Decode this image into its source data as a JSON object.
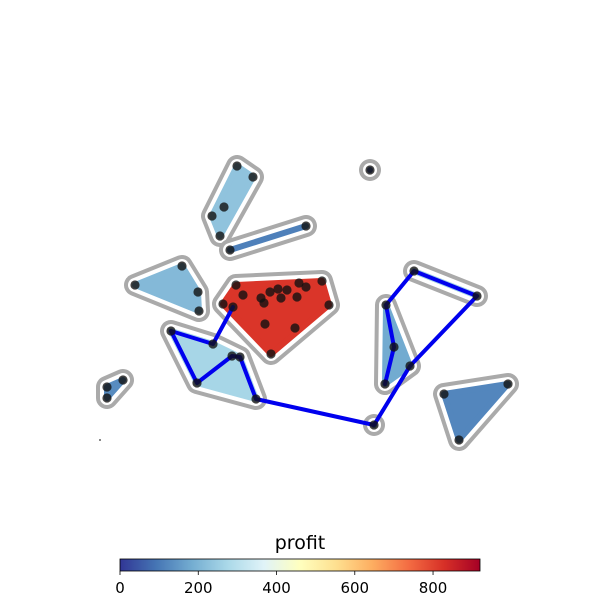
{
  "chart_data": {
    "type": "scatter",
    "colorbar": {
      "title": "profit",
      "min": 0,
      "max": 920,
      "ticks": [
        0,
        200,
        400,
        600,
        800
      ],
      "colormap": [
        "#313695",
        "#4575b4",
        "#74add1",
        "#abd9e9",
        "#e0f3f8",
        "#ffffbf",
        "#fee090",
        "#fdae61",
        "#f46d43",
        "#d73027",
        "#a50026"
      ]
    },
    "clusters": [
      {
        "profit": 230,
        "points": [
          [
            237,
            166
          ],
          [
            253,
            177
          ],
          [
            212,
            216
          ],
          [
            224,
            207
          ],
          [
            220,
            236
          ]
        ]
      },
      {
        "profit": 110,
        "points": [
          [
            230,
            250
          ],
          [
            306,
            226
          ]
        ]
      },
      {
        "profit": 50,
        "points": [
          [
            370,
            170
          ]
        ]
      },
      {
        "profit": 210,
        "points": [
          [
            182,
            266
          ],
          [
            198,
            292
          ],
          [
            199,
            311
          ],
          [
            135,
            285
          ]
        ]
      },
      {
        "profit": 820,
        "points": [
          [
            236,
            285
          ],
          [
            223,
            304
          ],
          [
            233,
            307
          ],
          [
            243,
            295
          ],
          [
            261,
            298
          ],
          [
            264,
            303
          ],
          [
            270,
            292
          ],
          [
            278,
            289
          ],
          [
            287,
            290
          ],
          [
            299,
            283
          ],
          [
            306,
            287
          ],
          [
            322,
            281
          ],
          [
            329,
            305
          ],
          [
            297,
            297
          ],
          [
            281,
            298
          ],
          [
            265,
            324
          ],
          [
            295,
            328
          ],
          [
            271,
            354
          ]
        ]
      },
      {
        "profit": 270,
        "points": [
          [
            171,
            331
          ],
          [
            213,
            344
          ],
          [
            197,
            383
          ],
          [
            232,
            356
          ],
          [
            240,
            357
          ],
          [
            256,
            399
          ]
        ]
      },
      {
        "profit": 130,
        "points": [
          [
            107,
            387
          ],
          [
            107,
            398
          ],
          [
            123,
            380
          ]
        ]
      },
      {
        "profit": 180,
        "points": [
          [
            386,
            305
          ],
          [
            394,
            347
          ],
          [
            385,
            384
          ],
          [
            410,
            366
          ]
        ]
      },
      {
        "profit": 260,
        "points": [
          [
            414,
            271
          ],
          [
            477,
            296
          ]
        ]
      },
      {
        "profit": 100,
        "points": [
          [
            374,
            425
          ]
        ]
      },
      {
        "profit": 120,
        "points": [
          [
            444,
            394
          ],
          [
            459,
            440
          ],
          [
            508,
            384
          ]
        ]
      }
    ],
    "route": [
      [
        233,
        307
      ],
      [
        213,
        344
      ],
      [
        171,
        331
      ],
      [
        197,
        383
      ],
      [
        232,
        356
      ],
      [
        240,
        357
      ],
      [
        256,
        399
      ],
      [
        374,
        425
      ],
      [
        410,
        366
      ],
      [
        477,
        296
      ],
      [
        414,
        271
      ],
      [
        386,
        305
      ],
      [
        394,
        347
      ],
      [
        385,
        384
      ]
    ],
    "stray_marker": [
      100,
      440
    ]
  }
}
